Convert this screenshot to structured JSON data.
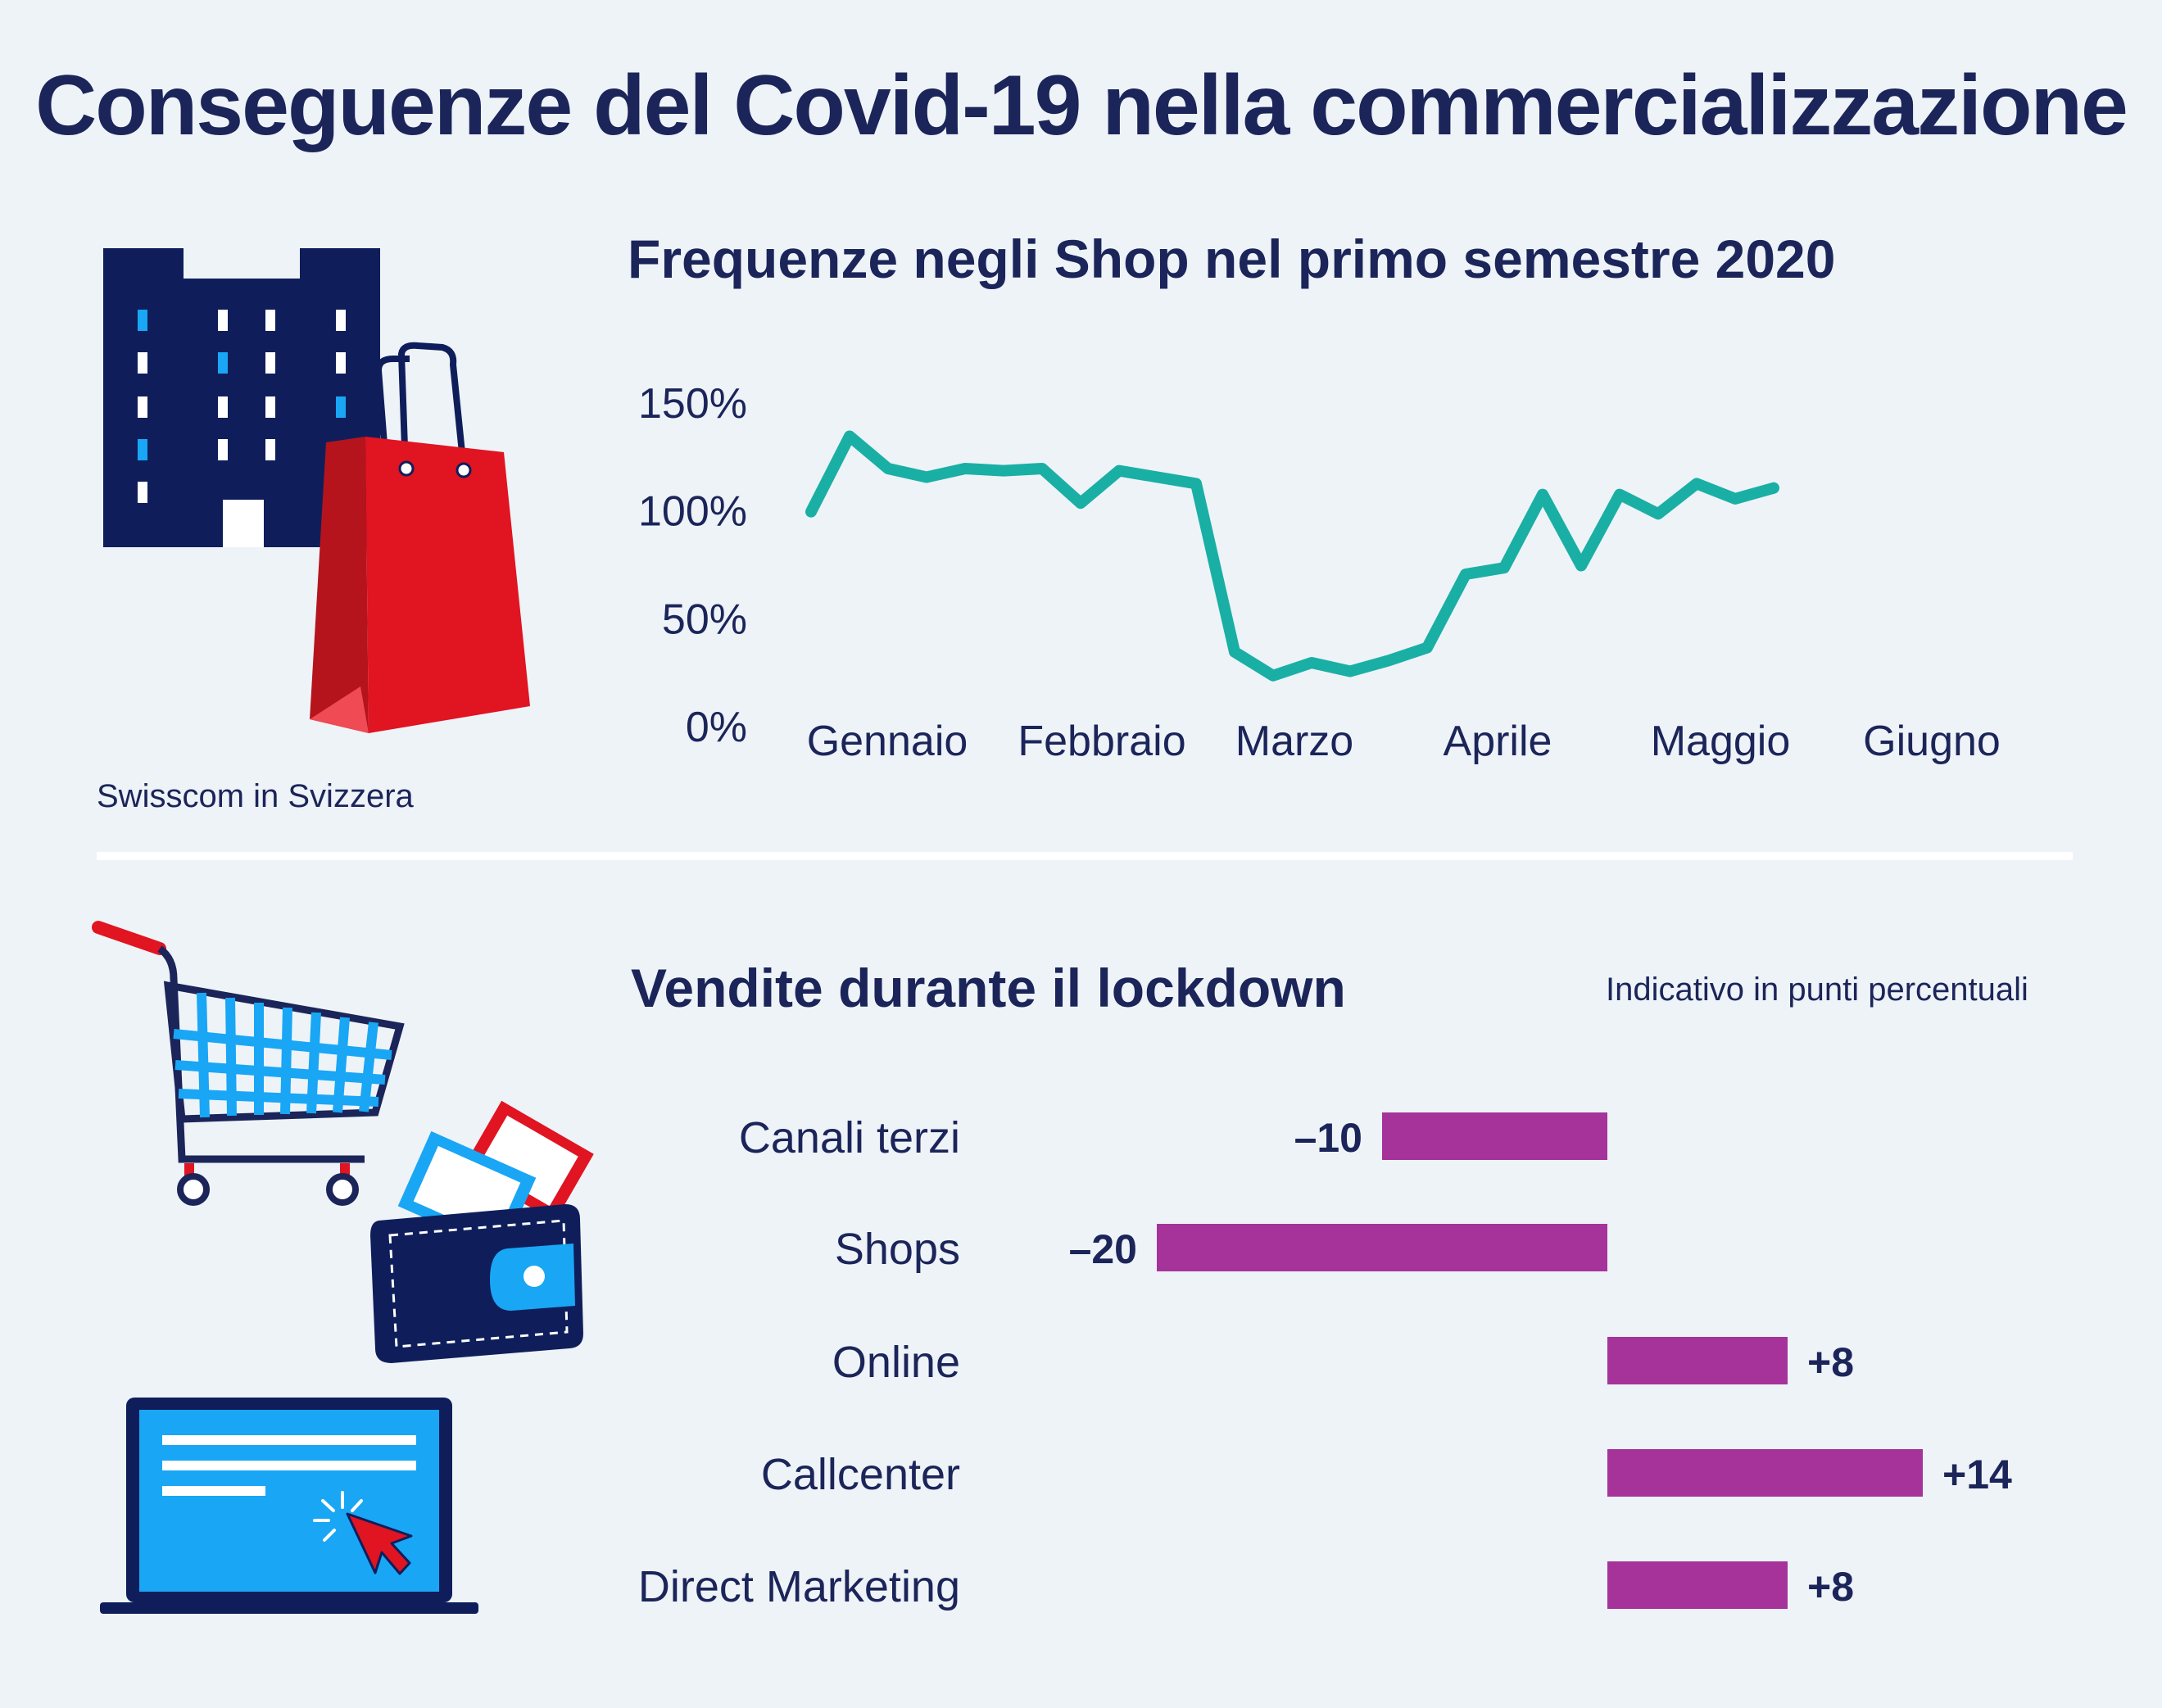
{
  "title": "Conseguenze del Covid-19 nella commercializzazione",
  "source_note": "Swisscom in Svizzera",
  "line_section": {
    "title": "Frequenze negli Shop nel primo semestre 2020"
  },
  "bar_section": {
    "title": "Vendite durante il lockdown",
    "note": "Indicativo in punti percentuali"
  },
  "colors": {
    "line": "#1aafa5",
    "bar": "#a5339a",
    "text": "#1b2559",
    "building": "#0f1e5b",
    "bag_red": "#e11421",
    "screen_blue": "#19a6f5",
    "background": "#eef3f8"
  },
  "icons": [
    "building-icon",
    "shopping-bag-icon",
    "shopping-cart-icon",
    "wallet-icon",
    "banknotes-icon",
    "laptop-icon",
    "cursor-icon"
  ],
  "chart_data": [
    {
      "type": "line",
      "title": "Frequenze negli Shop nel primo semestre 2020",
      "y_ticks": [
        "0%",
        "50%",
        "100%",
        "150%"
      ],
      "y_tick_values": [
        0,
        50,
        100,
        150
      ],
      "ylim": [
        0,
        150
      ],
      "month_labels": [
        "Gennaio",
        "Febbraio",
        "Marzo",
        "Aprile",
        "Maggio",
        "Giugno"
      ],
      "x_unit": "weeks 2020",
      "series": [
        {
          "values": [
            100,
            135,
            120,
            116,
            120,
            119,
            120,
            104,
            119,
            116,
            113,
            35,
            24,
            30,
            26,
            31,
            37,
            71,
            74,
            108,
            75,
            108,
            99,
            113,
            106,
            111
          ]
        }
      ],
      "grid": false,
      "legend": "none"
    },
    {
      "type": "bar",
      "orientation": "horizontal",
      "title": "Vendite durante il lockdown",
      "note": "Indicativo in punti percentuali",
      "categories": [
        "Canali terzi",
        "Shops",
        "Online",
        "Callcenter",
        "Direct Marketing"
      ],
      "values": [
        -10,
        -20,
        8,
        14,
        8
      ],
      "value_labels": [
        "–10",
        "–20",
        "+8",
        "+14",
        "+8"
      ],
      "xlim": [
        -20,
        14
      ]
    }
  ]
}
